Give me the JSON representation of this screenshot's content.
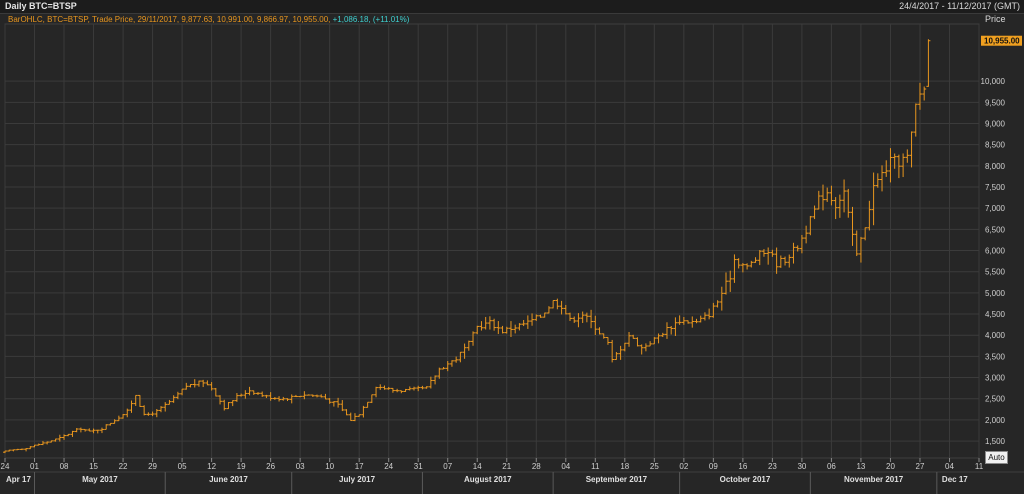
{
  "header": {
    "title": "Daily BTC=BTSP",
    "date_range": "24/4/2017 - 11/12/2017 (GMT)",
    "legend_series": "BarOHLC, BTC=BTSP, Trade Price, 29/11/2017, 9,877.63, 10,991.00, 9,866.97, 10,955.00,",
    "legend_change": "+1,086.18, (+11.01%)",
    "price_axis_title": "Price",
    "auto_label": "Auto"
  },
  "colors": {
    "bars": "#e8961e",
    "change": "#3fd0d0",
    "last_price_tag": "#f0a020",
    "grid": "#3b3b3b"
  },
  "chart_data": {
    "type": "bar",
    "chart_style": "ohlc",
    "x_start": "2017-04-24",
    "x_end": "2017-12-11",
    "ylim": [
      1100,
      11350
    ],
    "grid": true,
    "y_ticks": [
      {
        "value": 1500,
        "label": "1,500"
      },
      {
        "value": 2000,
        "label": "2,000"
      },
      {
        "value": 2500,
        "label": "2,500"
      },
      {
        "value": 3000,
        "label": "3,000"
      },
      {
        "value": 3500,
        "label": "3,500"
      },
      {
        "value": 4000,
        "label": "4,000"
      },
      {
        "value": 4500,
        "label": "4,500"
      },
      {
        "value": 5000,
        "label": "5,000"
      },
      {
        "value": 5500,
        "label": "5,500"
      },
      {
        "value": 6000,
        "label": "6,000"
      },
      {
        "value": 6500,
        "label": "6,500"
      },
      {
        "value": 7000,
        "label": "7,000"
      },
      {
        "value": 7500,
        "label": "7,500"
      },
      {
        "value": 8000,
        "label": "8,000"
      },
      {
        "value": 8500,
        "label": "8,500"
      },
      {
        "value": 9000,
        "label": "9,000"
      },
      {
        "value": 9500,
        "label": "9,500"
      },
      {
        "value": 10000,
        "label": "10,000"
      }
    ],
    "last_price_label": "10,955.00",
    "x_ticks": [
      {
        "date": "2017-04-24",
        "label": "24"
      },
      {
        "date": "2017-05-01",
        "label": "01"
      },
      {
        "date": "2017-05-08",
        "label": "08"
      },
      {
        "date": "2017-05-15",
        "label": "15"
      },
      {
        "date": "2017-05-22",
        "label": "22"
      },
      {
        "date": "2017-05-29",
        "label": "29"
      },
      {
        "date": "2017-06-05",
        "label": "05"
      },
      {
        "date": "2017-06-12",
        "label": "12"
      },
      {
        "date": "2017-06-19",
        "label": "19"
      },
      {
        "date": "2017-06-26",
        "label": "26"
      },
      {
        "date": "2017-07-03",
        "label": "03"
      },
      {
        "date": "2017-07-10",
        "label": "10"
      },
      {
        "date": "2017-07-17",
        "label": "17"
      },
      {
        "date": "2017-07-24",
        "label": "24"
      },
      {
        "date": "2017-07-31",
        "label": "31"
      },
      {
        "date": "2017-08-07",
        "label": "07"
      },
      {
        "date": "2017-08-14",
        "label": "14"
      },
      {
        "date": "2017-08-21",
        "label": "21"
      },
      {
        "date": "2017-08-28",
        "label": "28"
      },
      {
        "date": "2017-09-04",
        "label": "04"
      },
      {
        "date": "2017-09-11",
        "label": "11"
      },
      {
        "date": "2017-09-18",
        "label": "18"
      },
      {
        "date": "2017-09-25",
        "label": "25"
      },
      {
        "date": "2017-10-02",
        "label": "02"
      },
      {
        "date": "2017-10-09",
        "label": "09"
      },
      {
        "date": "2017-10-16",
        "label": "16"
      },
      {
        "date": "2017-10-23",
        "label": "23"
      },
      {
        "date": "2017-10-30",
        "label": "30"
      },
      {
        "date": "2017-11-06",
        "label": "06"
      },
      {
        "date": "2017-11-13",
        "label": "13"
      },
      {
        "date": "2017-11-20",
        "label": "20"
      },
      {
        "date": "2017-11-27",
        "label": "27"
      },
      {
        "date": "2017-12-04",
        "label": "04"
      },
      {
        "date": "2017-12-11",
        "label": "11"
      }
    ],
    "months": [
      {
        "date": "2017-04-24",
        "label": "Apr 17"
      },
      {
        "date": "2017-05-01",
        "label": "May 2017"
      },
      {
        "date": "2017-06-01",
        "label": "June 2017"
      },
      {
        "date": "2017-07-01",
        "label": "July 2017"
      },
      {
        "date": "2017-08-01",
        "label": "August 2017"
      },
      {
        "date": "2017-09-01",
        "label": "September 2017"
      },
      {
        "date": "2017-10-01",
        "label": "October 2017"
      },
      {
        "date": "2017-11-01",
        "label": "November 2017"
      },
      {
        "date": "2017-12-01",
        "label": "Dec 17"
      }
    ],
    "close_path": [
      [
        "2017-04-24",
        1250
      ],
      [
        "2017-04-26",
        1290
      ],
      [
        "2017-04-29",
        1340
      ],
      [
        "2017-05-03",
        1450
      ],
      [
        "2017-05-07",
        1570
      ],
      [
        "2017-05-10",
        1720
      ],
      [
        "2017-05-12",
        1800
      ],
      [
        "2017-05-14",
        1720
      ],
      [
        "2017-05-17",
        1800
      ],
      [
        "2017-05-20",
        2000
      ],
      [
        "2017-05-23",
        2200
      ],
      [
        "2017-05-25",
        2600
      ],
      [
        "2017-05-27",
        2100
      ],
      [
        "2017-05-30",
        2200
      ],
      [
        "2017-06-03",
        2500
      ],
      [
        "2017-06-06",
        2800
      ],
      [
        "2017-06-10",
        2900
      ],
      [
        "2017-06-12",
        2750
      ],
      [
        "2017-06-15",
        2300
      ],
      [
        "2017-06-18",
        2550
      ],
      [
        "2017-06-21",
        2700
      ],
      [
        "2017-06-25",
        2550
      ],
      [
        "2017-06-29",
        2500
      ],
      [
        "2017-07-04",
        2600
      ],
      [
        "2017-07-08",
        2550
      ],
      [
        "2017-07-12",
        2350
      ],
      [
        "2017-07-15",
        2000
      ],
      [
        "2017-07-17",
        2150
      ],
      [
        "2017-07-19",
        2450
      ],
      [
        "2017-07-21",
        2800
      ],
      [
        "2017-07-25",
        2700
      ],
      [
        "2017-07-29",
        2700
      ],
      [
        "2017-08-02",
        2750
      ],
      [
        "2017-08-05",
        3200
      ],
      [
        "2017-08-09",
        3450
      ],
      [
        "2017-08-12",
        3800
      ],
      [
        "2017-08-14",
        4200
      ],
      [
        "2017-08-17",
        4300
      ],
      [
        "2017-08-20",
        4100
      ],
      [
        "2017-08-23",
        4200
      ],
      [
        "2017-08-26",
        4300
      ],
      [
        "2017-08-29",
        4450
      ],
      [
        "2017-09-01",
        4800
      ],
      [
        "2017-09-03",
        4700
      ],
      [
        "2017-09-05",
        4350
      ],
      [
        "2017-09-08",
        4500
      ],
      [
        "2017-09-11",
        4200
      ],
      [
        "2017-09-14",
        3800
      ],
      [
        "2017-09-15",
        3400
      ],
      [
        "2017-09-17",
        3700
      ],
      [
        "2017-09-19",
        4000
      ],
      [
        "2017-09-22",
        3700
      ],
      [
        "2017-09-25",
        3900
      ],
      [
        "2017-09-28",
        4150
      ],
      [
        "2017-10-01",
        4350
      ],
      [
        "2017-10-05",
        4300
      ],
      [
        "2017-10-08",
        4500
      ],
      [
        "2017-10-10",
        4800
      ],
      [
        "2017-10-13",
        5400
      ],
      [
        "2017-10-14",
        5800
      ],
      [
        "2017-10-17",
        5600
      ],
      [
        "2017-10-20",
        5900
      ],
      [
        "2017-10-22",
        6000
      ],
      [
        "2017-10-24",
        5700
      ],
      [
        "2017-10-26",
        5800
      ],
      [
        "2017-10-29",
        6100
      ],
      [
        "2017-11-01",
        6700
      ],
      [
        "2017-11-03",
        7200
      ],
      [
        "2017-11-05",
        7400
      ],
      [
        "2017-11-07",
        7100
      ],
      [
        "2017-11-09",
        7400
      ],
      [
        "2017-11-11",
        6300
      ],
      [
        "2017-11-12",
        5900
      ],
      [
        "2017-11-14",
        6600
      ],
      [
        "2017-11-16",
        7500
      ],
      [
        "2017-11-18",
        7800
      ],
      [
        "2017-11-20",
        8100
      ],
      [
        "2017-11-22",
        8100
      ],
      [
        "2017-11-24",
        8200
      ],
      [
        "2017-11-25",
        8700
      ],
      [
        "2017-11-26",
        9400
      ],
      [
        "2017-11-27",
        9700
      ],
      [
        "2017-11-28",
        9870
      ],
      [
        "2017-11-29",
        10955
      ]
    ],
    "last_bar": {
      "date": "2017-11-29",
      "open": 9877.63,
      "high": 10991.0,
      "low": 9866.97,
      "close": 10955.0
    }
  }
}
